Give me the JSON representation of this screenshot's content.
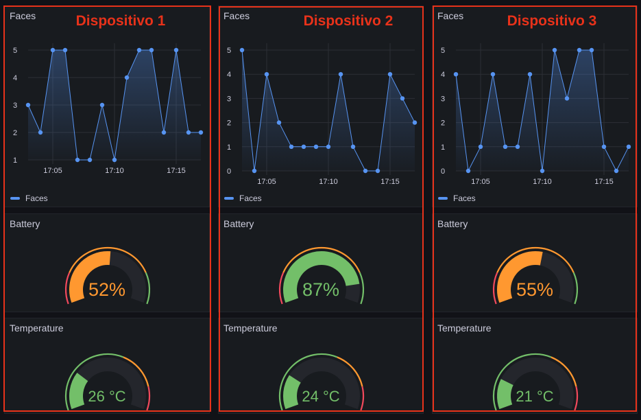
{
  "colors": {
    "line": "#5794f2",
    "gauge_green": "#73bf69",
    "gauge_orange": "#ff9830",
    "gauge_red": "#f2495c",
    "annotation": "#e8321a"
  },
  "devices": [
    {
      "label": "Dispositivo 1",
      "faces": {
        "title": "Faces",
        "legend": "Faces",
        "y_ticks": [
          "1",
          "2",
          "3",
          "4",
          "5"
        ],
        "x_ticks": [
          "17:05",
          "17:10",
          "17:15"
        ]
      },
      "battery": {
        "title": "Battery",
        "value": 52,
        "display": "52%",
        "color": "#ff9830"
      },
      "temperature": {
        "title": "Temperature",
        "value": 26,
        "display": "26 °C",
        "color": "#73bf69"
      }
    },
    {
      "label": "Dispositivo 2",
      "faces": {
        "title": "Faces",
        "legend": "Faces",
        "y_ticks": [
          "0",
          "1",
          "2",
          "3",
          "4",
          "5"
        ],
        "x_ticks": [
          "17:05",
          "17:10",
          "17:15"
        ]
      },
      "battery": {
        "title": "Battery",
        "value": 87,
        "display": "87%",
        "color": "#73bf69"
      },
      "temperature": {
        "title": "Temperature",
        "value": 24,
        "display": "24 °C",
        "color": "#73bf69"
      }
    },
    {
      "label": "Dispositivo 3",
      "faces": {
        "title": "Faces",
        "legend": "Faces",
        "y_ticks": [
          "0",
          "1",
          "2",
          "3",
          "4",
          "5"
        ],
        "x_ticks": [
          "17:05",
          "17:10",
          "17:15"
        ]
      },
      "battery": {
        "title": "Battery",
        "value": 55,
        "display": "55%",
        "color": "#ff9830"
      },
      "temperature": {
        "title": "Temperature",
        "value": 21,
        "display": "21 °C",
        "color": "#73bf69"
      }
    }
  ],
  "chart_data": [
    {
      "type": "line",
      "title": "Faces",
      "x_ticks": [
        "17:05",
        "17:10",
        "17:15"
      ],
      "ylim": [
        1,
        5
      ],
      "grid": true,
      "legend": "bottom-left",
      "series": [
        {
          "name": "Faces",
          "values": [
            3,
            2,
            5,
            5,
            1,
            1,
            3,
            1,
            4,
            5,
            5,
            2,
            5,
            2,
            2
          ]
        }
      ]
    },
    {
      "type": "line",
      "title": "Faces",
      "x_ticks": [
        "17:05",
        "17:10",
        "17:15"
      ],
      "ylim": [
        0,
        5
      ],
      "grid": true,
      "legend": "bottom-left",
      "series": [
        {
          "name": "Faces",
          "values": [
            5,
            0,
            4,
            2,
            1,
            1,
            1,
            1,
            4,
            1,
            0,
            0,
            4,
            3,
            2
          ]
        }
      ]
    },
    {
      "type": "line",
      "title": "Faces",
      "x_ticks": [
        "17:05",
        "17:10",
        "17:15"
      ],
      "ylim": [
        0,
        5
      ],
      "grid": true,
      "legend": "bottom-left",
      "series": [
        {
          "name": "Faces",
          "values": [
            4,
            0,
            1,
            4,
            1,
            1,
            4,
            0,
            5,
            3,
            5,
            5,
            1,
            0,
            1
          ]
        }
      ]
    }
  ]
}
